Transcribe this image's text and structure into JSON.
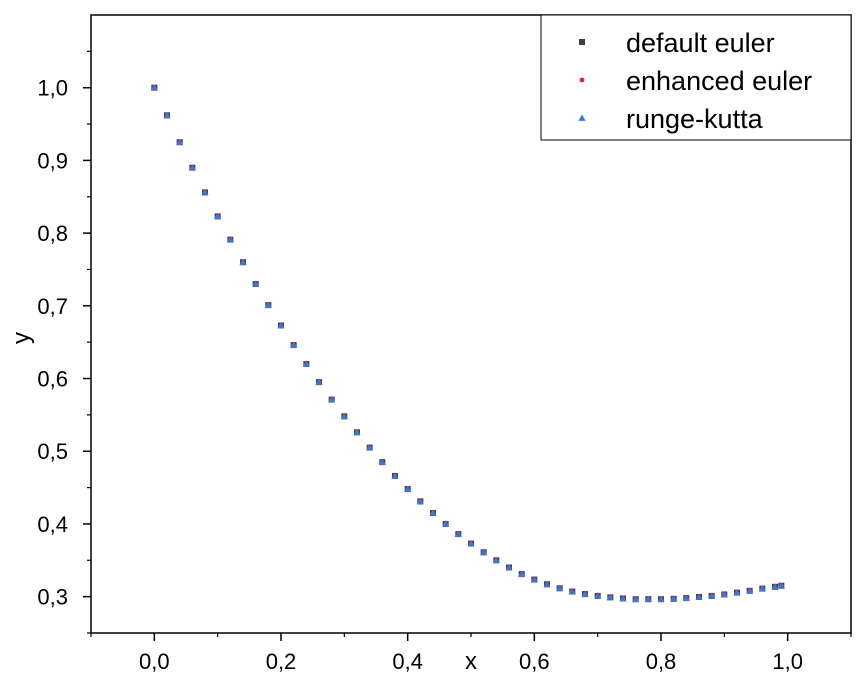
{
  "chart_data": {
    "type": "scatter",
    "title": "",
    "xlabel": "x",
    "ylabel": "y",
    "xlim": [
      -0.1,
      1.1
    ],
    "ylim": [
      0.25,
      1.1
    ],
    "x_ticks": [
      "0,0",
      "0,2",
      "0,4",
      "0,6",
      "0,8",
      "1,0"
    ],
    "x_tick_values": [
      0.0,
      0.2,
      0.4,
      0.6,
      0.8,
      1.0
    ],
    "y_ticks": [
      "0,3",
      "0,4",
      "0,5",
      "0,6",
      "0,7",
      "0,8",
      "0,9",
      "1,0"
    ],
    "y_tick_values": [
      0.3,
      0.4,
      0.5,
      0.6,
      0.7,
      0.8,
      0.9,
      1.0
    ],
    "grid": false,
    "legend_position": "top-right",
    "x": [
      0.0,
      0.02,
      0.04,
      0.06,
      0.08,
      0.1,
      0.12,
      0.14,
      0.16,
      0.18,
      0.2,
      0.22,
      0.24,
      0.26,
      0.28,
      0.3,
      0.32,
      0.34,
      0.36,
      0.38,
      0.4,
      0.42,
      0.44,
      0.46,
      0.48,
      0.5,
      0.52,
      0.54,
      0.56,
      0.58,
      0.6,
      0.62,
      0.64,
      0.66,
      0.68,
      0.7,
      0.72,
      0.74,
      0.76,
      0.78,
      0.8,
      0.82,
      0.84,
      0.86,
      0.88,
      0.9,
      0.92,
      0.94,
      0.96,
      0.98,
      0.99
    ],
    "series": [
      {
        "name": "default euler",
        "marker": "square",
        "color": "#404040",
        "values": [
          1.0,
          0.962,
          0.925,
          0.89,
          0.856,
          0.823,
          0.791,
          0.76,
          0.73,
          0.701,
          0.673,
          0.646,
          0.62,
          0.595,
          0.571,
          0.548,
          0.526,
          0.505,
          0.485,
          0.466,
          0.448,
          0.431,
          0.415,
          0.4,
          0.386,
          0.373,
          0.361,
          0.35,
          0.34,
          0.331,
          0.3235,
          0.317,
          0.3115,
          0.307,
          0.3035,
          0.301,
          0.299,
          0.2975,
          0.2965,
          0.2965,
          0.2965,
          0.297,
          0.298,
          0.2995,
          0.301,
          0.303,
          0.3055,
          0.308,
          0.311,
          0.3135,
          0.315
        ]
      },
      {
        "name": "enhanced euler",
        "marker": "circle",
        "color": "#e0232b",
        "values": [
          1.0,
          0.962,
          0.925,
          0.89,
          0.856,
          0.823,
          0.791,
          0.76,
          0.73,
          0.701,
          0.673,
          0.646,
          0.62,
          0.595,
          0.571,
          0.548,
          0.526,
          0.505,
          0.485,
          0.466,
          0.448,
          0.431,
          0.415,
          0.4,
          0.386,
          0.373,
          0.361,
          0.35,
          0.34,
          0.331,
          0.3235,
          0.317,
          0.3115,
          0.307,
          0.3035,
          0.301,
          0.299,
          0.2975,
          0.2965,
          0.2965,
          0.2965,
          0.297,
          0.298,
          0.2995,
          0.301,
          0.303,
          0.3055,
          0.308,
          0.311,
          0.3135,
          0.315
        ]
      },
      {
        "name": "runge-kutta",
        "marker": "triangle",
        "color": "#3a78d6",
        "values": [
          1.0,
          0.962,
          0.925,
          0.89,
          0.856,
          0.823,
          0.791,
          0.76,
          0.73,
          0.701,
          0.673,
          0.646,
          0.62,
          0.595,
          0.571,
          0.548,
          0.526,
          0.505,
          0.485,
          0.466,
          0.448,
          0.431,
          0.415,
          0.4,
          0.386,
          0.373,
          0.361,
          0.35,
          0.34,
          0.331,
          0.3235,
          0.317,
          0.3115,
          0.307,
          0.3035,
          0.301,
          0.299,
          0.2975,
          0.2965,
          0.2965,
          0.2965,
          0.297,
          0.298,
          0.2995,
          0.301,
          0.303,
          0.3055,
          0.308,
          0.311,
          0.3135,
          0.315
        ]
      }
    ]
  }
}
